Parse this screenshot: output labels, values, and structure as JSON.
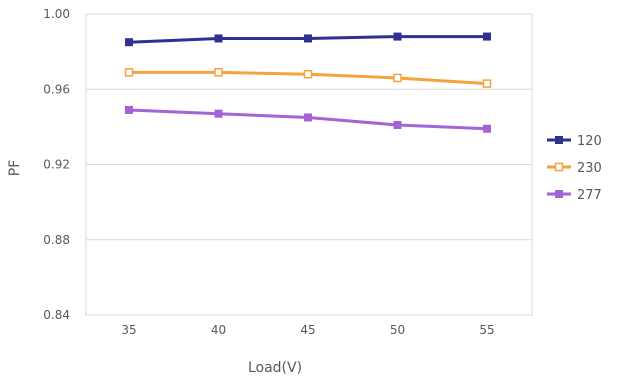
{
  "chart_data": {
    "type": "line",
    "title": "",
    "xlabel": "Load(V)",
    "ylabel": "PF",
    "x": [
      35,
      40,
      45,
      50,
      55
    ],
    "x_tick_labels": [
      "35",
      "40",
      "45",
      "50",
      "55"
    ],
    "ylim": [
      0.84,
      1.0
    ],
    "y_ticks": [
      0.84,
      0.88,
      0.92,
      0.96,
      1.0
    ],
    "y_tick_labels": [
      "0.84",
      "0.88",
      "0.92",
      "0.96",
      "1.00"
    ],
    "grid": "horizontal",
    "legend_position": "right",
    "series": [
      {
        "name": "120",
        "color": "#2e3192",
        "marker": "filled-square",
        "values": [
          0.985,
          0.987,
          0.987,
          0.988,
          0.988
        ]
      },
      {
        "name": "230",
        "color": "#f5a33c",
        "marker": "hollow-square",
        "values": [
          0.969,
          0.969,
          0.968,
          0.966,
          0.963
        ]
      },
      {
        "name": "277",
        "color": "#a463d6",
        "marker": "filled-square",
        "values": [
          0.949,
          0.947,
          0.945,
          0.941,
          0.939
        ]
      }
    ]
  }
}
